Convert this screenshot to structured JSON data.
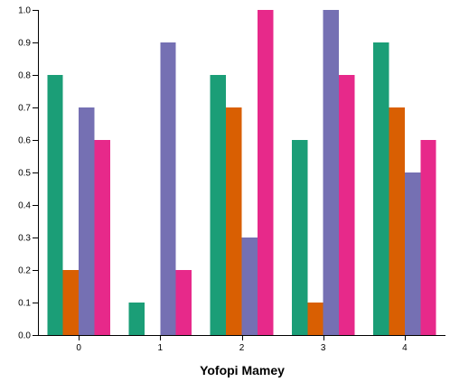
{
  "chart_data": {
    "type": "bar",
    "categories": [
      "0",
      "1",
      "2",
      "3",
      "4"
    ],
    "series": [
      {
        "color": "#1b9e77",
        "values": [
          0.8,
          0.1,
          0.8,
          0.6,
          0.9
        ]
      },
      {
        "color": "#d95f02",
        "values": [
          0.2,
          0.0,
          0.7,
          0.1,
          0.7
        ]
      },
      {
        "color": "#7570b3",
        "values": [
          0.7,
          0.9,
          0.3,
          1.0,
          0.5
        ]
      },
      {
        "color": "#e7298a",
        "values": [
          0.6,
          0.2,
          1.0,
          0.8,
          0.6
        ]
      }
    ],
    "title": "",
    "xlabel": "Yofopi Mamey",
    "ylabel": "",
    "ylim": [
      0,
      1.0
    ],
    "yticks": [
      "0.0",
      "0.1",
      "0.2",
      "0.3",
      "0.4",
      "0.5",
      "0.6",
      "0.7",
      "0.8",
      "0.9",
      "1.0"
    ],
    "grid": false,
    "legend": "none"
  }
}
